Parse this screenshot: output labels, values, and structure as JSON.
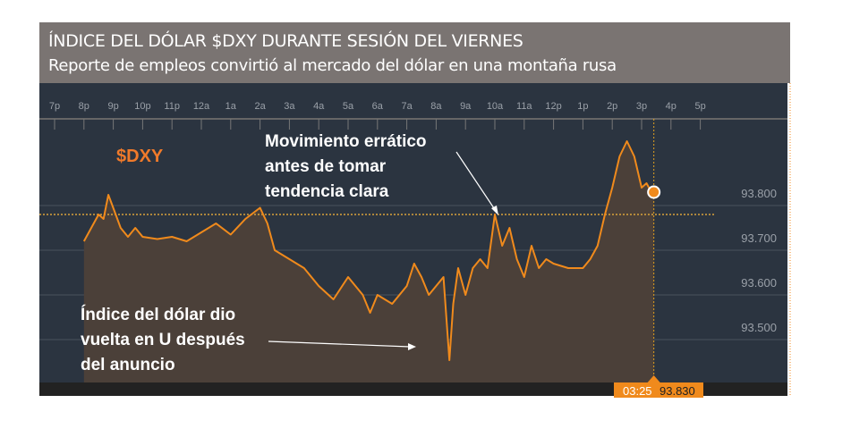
{
  "header": {
    "title": "ÍNDICE DEL DÓLAR $DXY DURANTE SESIÓN DEL VIERNES",
    "subtitle": "Reporte de empleos convirtió al mercado del dólar en una montaña rusa"
  },
  "chart_data": {
    "type": "area",
    "title": "$DXY",
    "xticks": [
      "7p",
      "8p",
      "9p",
      "10p",
      "11p",
      "12a",
      "1a",
      "2a",
      "3a",
      "4a",
      "5a",
      "6a",
      "7a",
      "8a",
      "9a",
      "10a",
      "11a",
      "12p",
      "1p",
      "2p",
      "3p",
      "4p",
      "5p"
    ],
    "yticks": [
      "93.500",
      "93.600",
      "93.700",
      "93.800"
    ],
    "ylim": [
      93.43,
      93.96
    ],
    "xlim": [
      "19:00",
      "17:00"
    ],
    "reference_line": 93.78,
    "grid": true,
    "colors": {
      "line": "#f08a1c",
      "fill": "#4b4039",
      "background": "#2b3440",
      "marker": "#f08a1c"
    },
    "current": {
      "time": "03:25",
      "value": "93.830"
    },
    "series": [
      {
        "points": [
          [
            "20:00",
            93.72
          ],
          [
            "20:15",
            93.75
          ],
          [
            "20:30",
            93.78
          ],
          [
            "20:40",
            93.77
          ],
          [
            "20:50",
            93.824
          ],
          [
            "21:05",
            93.78
          ],
          [
            "21:15",
            93.75
          ],
          [
            "21:30",
            93.73
          ],
          [
            "21:45",
            93.75
          ],
          [
            "22:00",
            93.73
          ],
          [
            "22:30",
            93.725
          ],
          [
            "23:00",
            93.73
          ],
          [
            "23:30",
            93.72
          ],
          [
            "00:00",
            93.74
          ],
          [
            "00:30",
            93.76
          ],
          [
            "01:00",
            93.735
          ],
          [
            "01:30",
            93.77
          ],
          [
            "02:00",
            93.795
          ],
          [
            "02:15",
            93.76
          ],
          [
            "02:30",
            93.7
          ],
          [
            "03:00",
            93.68
          ],
          [
            "03:30",
            93.66
          ],
          [
            "04:00",
            93.62
          ],
          [
            "04:30",
            93.59
          ],
          [
            "05:00",
            93.64
          ],
          [
            "05:30",
            93.6
          ],
          [
            "05:45",
            93.56
          ],
          [
            "06:00",
            93.6
          ],
          [
            "06:30",
            93.58
          ],
          [
            "07:00",
            93.62
          ],
          [
            "07:15",
            93.67
          ],
          [
            "07:30",
            93.64
          ],
          [
            "07:45",
            93.6
          ],
          [
            "08:00",
            93.62
          ],
          [
            "08:15",
            93.64
          ],
          [
            "08:27",
            93.454
          ],
          [
            "08:35",
            93.58
          ],
          [
            "08:45",
            93.66
          ],
          [
            "09:00",
            93.6
          ],
          [
            "09:15",
            93.66
          ],
          [
            "09:30",
            93.68
          ],
          [
            "09:45",
            93.66
          ],
          [
            "10:00",
            93.78
          ],
          [
            "10:15",
            93.71
          ],
          [
            "10:30",
            93.75
          ],
          [
            "10:45",
            93.68
          ],
          [
            "11:00",
            93.64
          ],
          [
            "11:15",
            93.71
          ],
          [
            "11:30",
            93.66
          ],
          [
            "11:45",
            93.68
          ],
          [
            "12:00",
            93.67
          ],
          [
            "12:30",
            93.66
          ],
          [
            "13:00",
            93.66
          ],
          [
            "13:15",
            93.68
          ],
          [
            "13:30",
            93.71
          ],
          [
            "13:45",
            93.78
          ],
          [
            "14:00",
            93.84
          ],
          [
            "14:15",
            93.91
          ],
          [
            "14:30",
            93.944
          ],
          [
            "14:45",
            93.91
          ],
          [
            "15:00",
            93.84
          ],
          [
            "15:10",
            93.85
          ],
          [
            "15:20",
            93.83
          ],
          [
            "15:25",
            93.83
          ]
        ]
      }
    ],
    "annotations": [
      "Movimiento errático",
      "antes de tomar",
      "tendencia clara",
      "Índice del dólar dio",
      "vuelta en U después",
      "del anuncio"
    ]
  }
}
